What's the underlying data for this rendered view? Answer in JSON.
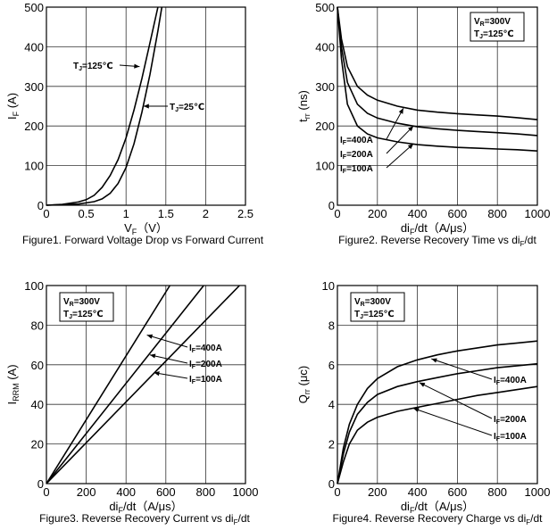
{
  "chart_data": [
    {
      "type": "line",
      "id": "fig1",
      "title": "Figure1. Forward Voltage Drop vs Forward Current",
      "xlabel": "V_F (V)",
      "xlabel_main": "V",
      "xlabel_sub": "F",
      "xlabel_unit": "（V）",
      "ylabel": "I_F (A)",
      "ylabel_main": "I",
      "ylabel_sub": "F",
      "ylabel_unit": " (A)",
      "xlim": [
        0,
        2.5
      ],
      "ylim": [
        0,
        500
      ],
      "xticks": [
        0,
        0.5,
        1,
        1.5,
        2,
        2.5
      ],
      "xtick_labels": [
        "0",
        "0.5",
        "1",
        "1.5",
        "2",
        "2.5"
      ],
      "yticks": [
        0,
        100,
        200,
        300,
        400,
        500
      ],
      "ytick_labels": [
        "0",
        "100",
        "200",
        "300",
        "400",
        "500"
      ],
      "grid": true,
      "series": [
        {
          "name": "TJ=125℃",
          "x": [
            0,
            0.2,
            0.4,
            0.5,
            0.6,
            0.7,
            0.8,
            0.9,
            1.0,
            1.1,
            1.2,
            1.3,
            1.4
          ],
          "y": [
            0,
            2,
            8,
            14,
            25,
            45,
            75,
            115,
            170,
            240,
            320,
            410,
            500
          ]
        },
        {
          "name": "TJ=25℃",
          "x": [
            0,
            0.4,
            0.6,
            0.7,
            0.8,
            0.9,
            1.0,
            1.1,
            1.2,
            1.3,
            1.4,
            1.45
          ],
          "y": [
            0,
            3,
            9,
            16,
            30,
            55,
            95,
            155,
            235,
            330,
            440,
            500
          ]
        }
      ],
      "annotations": [
        {
          "main": "T",
          "sub": "J",
          "value": "=125℃",
          "target": [
            1.17,
            350
          ]
        },
        {
          "main": "T",
          "sub": "J",
          "value": "=25℃",
          "target": [
            1.22,
            250
          ]
        }
      ]
    },
    {
      "type": "line",
      "id": "fig2",
      "title": "Figure2. Reverse Recovery Time vs diF/dt",
      "title_main": "Figure2. Reverse Recovery Time vs di",
      "title_sub": "F",
      "title_tail": "/dt",
      "xlabel": "diF/dt (A/μs)",
      "xlabel_main": "di",
      "xlabel_sub": "F",
      "xlabel_unit": "/dt（A/μs）",
      "ylabel": "trr (ns)",
      "ylabel_main": "t",
      "ylabel_sub": "rr",
      "ylabel_unit": " (ns)",
      "xlim": [
        0,
        1000
      ],
      "ylim": [
        0,
        500
      ],
      "xticks": [
        0,
        200,
        400,
        600,
        800,
        1000
      ],
      "xtick_labels": [
        "0",
        "200",
        "400",
        "600",
        "800",
        "1000"
      ],
      "yticks": [
        0,
        100,
        200,
        300,
        400,
        500
      ],
      "ytick_labels": [
        "0",
        "100",
        "200",
        "300",
        "400",
        "500"
      ],
      "grid": true,
      "conditions": [
        {
          "main": "V",
          "sub": "R",
          "value": "=300V"
        },
        {
          "main": "T",
          "sub": "J",
          "value": "=125℃"
        }
      ],
      "series": [
        {
          "name": "IF=400A",
          "x": [
            0,
            20,
            50,
            100,
            150,
            200,
            300,
            400,
            500,
            600,
            700,
            800,
            900,
            1000
          ],
          "y": [
            500,
            420,
            350,
            300,
            278,
            265,
            250,
            240,
            235,
            231,
            228,
            225,
            221,
            216
          ]
        },
        {
          "name": "IF=200A",
          "x": [
            0,
            20,
            50,
            100,
            150,
            200,
            300,
            400,
            500,
            600,
            700,
            800,
            900,
            1000
          ],
          "y": [
            500,
            400,
            310,
            255,
            232,
            220,
            207,
            198,
            193,
            189,
            186,
            183,
            180,
            176
          ]
        },
        {
          "name": "IF=100A",
          "x": [
            0,
            20,
            50,
            100,
            150,
            200,
            300,
            400,
            500,
            600,
            700,
            800,
            900,
            1000
          ],
          "y": [
            500,
            370,
            255,
            200,
            180,
            170,
            160,
            153,
            149,
            146,
            144,
            142,
            140,
            137
          ]
        }
      ],
      "annotations": [
        {
          "main": "I",
          "sub": "F",
          "value": "=400A",
          "target": [
            330,
            245
          ]
        },
        {
          "main": "I",
          "sub": "F",
          "value": "=200A",
          "target": [
            380,
            200
          ]
        },
        {
          "main": "I",
          "sub": "F",
          "value": "=100A",
          "target": [
            380,
            155
          ]
        }
      ]
    },
    {
      "type": "line",
      "id": "fig3",
      "title": "Figure3. Reverse Recovery Current vs diF/dt",
      "title_main": "Figure3. Reverse Recovery Current vs di",
      "title_sub": "F",
      "title_tail": "/dt",
      "xlabel": "diF/dt (A/μs)",
      "xlabel_main": "di",
      "xlabel_sub": "F",
      "xlabel_unit": "/dt（A/μs）",
      "ylabel": "IRRM (A)",
      "ylabel_main": "I",
      "ylabel_sub": "RRM",
      "ylabel_unit": " (A)",
      "xlim": [
        0,
        1000
      ],
      "ylim": [
        0,
        100
      ],
      "xticks": [
        0,
        200,
        400,
        600,
        800,
        1000
      ],
      "xtick_labels": [
        "0",
        "200",
        "400",
        "600",
        "800",
        "1000"
      ],
      "yticks": [
        0,
        20,
        40,
        60,
        80,
        100
      ],
      "ytick_labels": [
        "0",
        "20",
        "40",
        "60",
        "80",
        "100"
      ],
      "grid": true,
      "conditions": [
        {
          "main": "V",
          "sub": "R",
          "value": "=300V"
        },
        {
          "main": "T",
          "sub": "J",
          "value": "=125℃"
        }
      ],
      "series": [
        {
          "name": "IF=400A",
          "x": [
            0,
            620
          ],
          "y": [
            0,
            100
          ]
        },
        {
          "name": "IF=200A",
          "x": [
            0,
            790
          ],
          "y": [
            0,
            100
          ]
        },
        {
          "name": "IF=100A",
          "x": [
            0,
            970
          ],
          "y": [
            0,
            100
          ]
        }
      ],
      "annotations": [
        {
          "main": "I",
          "sub": "F",
          "value": "=400A",
          "target": [
            505,
            75
          ]
        },
        {
          "main": "I",
          "sub": "F",
          "value": "=200A",
          "target": [
            520,
            65
          ]
        },
        {
          "main": "I",
          "sub": "F",
          "value": "=100A",
          "target": [
            540,
            56
          ]
        }
      ]
    },
    {
      "type": "line",
      "id": "fig4",
      "title": "Figure4. Reverse Recovery Charge vs diF/dt",
      "title_main": "Figure4. Reverse Recovery Charge vs di",
      "title_sub": "F",
      "title_tail": "/dt",
      "xlabel": "diF/dt (A/μs)",
      "xlabel_main": "di",
      "xlabel_sub": "F",
      "xlabel_unit": "/dt（A/μs）",
      "ylabel": "Qrr (μc)",
      "ylabel_main": "Q",
      "ylabel_sub": "rr",
      "ylabel_unit": " (μc)",
      "xlim": [
        0,
        1000
      ],
      "ylim": [
        0,
        10
      ],
      "xticks": [
        0,
        200,
        400,
        600,
        800,
        1000
      ],
      "xtick_labels": [
        "0",
        "200",
        "400",
        "600",
        "800",
        "1000"
      ],
      "yticks": [
        0,
        2,
        4,
        6,
        8,
        10
      ],
      "ytick_labels": [
        "0",
        "2",
        "4",
        "6",
        "8",
        "10"
      ],
      "grid": true,
      "conditions": [
        {
          "main": "V",
          "sub": "R",
          "value": "=300V"
        },
        {
          "main": "T",
          "sub": "J",
          "value": "=125℃"
        }
      ],
      "series": [
        {
          "name": "IF=400A",
          "x": [
            0,
            30,
            60,
            100,
            150,
            200,
            300,
            400,
            500,
            600,
            700,
            800,
            900,
            1000
          ],
          "y": [
            0,
            1.8,
            3.0,
            4.0,
            4.8,
            5.3,
            5.9,
            6.25,
            6.5,
            6.7,
            6.85,
            7.0,
            7.1,
            7.2
          ]
        },
        {
          "name": "IF=200A",
          "x": [
            0,
            30,
            60,
            100,
            150,
            200,
            300,
            400,
            500,
            600,
            700,
            800,
            900,
            1000
          ],
          "y": [
            0,
            1.5,
            2.6,
            3.5,
            4.1,
            4.5,
            4.9,
            5.15,
            5.35,
            5.55,
            5.7,
            5.85,
            5.95,
            6.05
          ]
        },
        {
          "name": "IF=100A",
          "x": [
            0,
            30,
            60,
            100,
            150,
            200,
            300,
            400,
            500,
            600,
            700,
            800,
            900,
            1000
          ],
          "y": [
            0,
            1.1,
            2.0,
            2.7,
            3.1,
            3.35,
            3.65,
            3.85,
            4.05,
            4.25,
            4.45,
            4.6,
            4.75,
            4.9
          ]
        }
      ],
      "annotations": [
        {
          "main": "I",
          "sub": "F",
          "value": "=400A",
          "target": [
            470,
            6.3
          ]
        },
        {
          "main": "I",
          "sub": "F",
          "value": "=200A",
          "target": [
            410,
            5.1
          ]
        },
        {
          "main": "I",
          "sub": "F",
          "value": "=100A",
          "target": [
            380,
            3.8
          ]
        }
      ]
    }
  ]
}
